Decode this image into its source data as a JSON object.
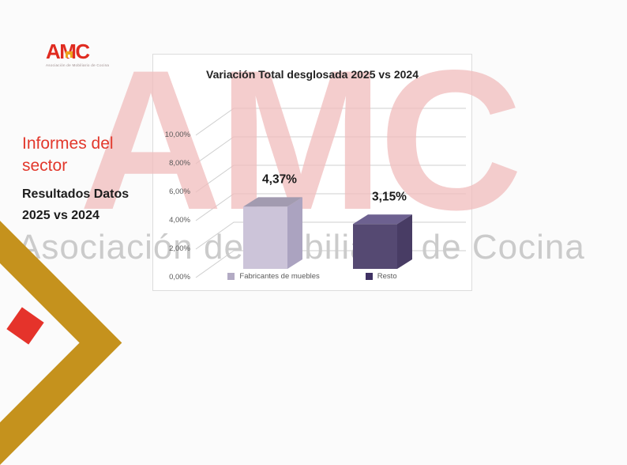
{
  "logo": {
    "text": "AMC",
    "subtext": "Asociación de Mobiliario de Cocina"
  },
  "left_panel": {
    "title": "Informes del sector",
    "subtitle_line1": "Resultados Datos",
    "subtitle_line2": "2025 vs 2024"
  },
  "watermark": {
    "text": "AMC",
    "subtitle": "Asociación de Mobiliario de Cocina"
  },
  "chart_data": {
    "type": "bar",
    "style": "3d-column",
    "title": "Variación Total desglosada 2025 vs 2024",
    "categories": [
      "Fabricantes de muebles",
      "Resto"
    ],
    "values": [
      4.37,
      3.15
    ],
    "value_labels": [
      "4,37%",
      "3,15%"
    ],
    "y_ticks": [
      "0,00%",
      "2,00%",
      "4,00%",
      "6,00%",
      "8,00%",
      "10,00%"
    ],
    "ylim": [
      0,
      10
    ],
    "xlabel": "",
    "ylabel": "",
    "grid": true,
    "legend_position": "bottom",
    "series_colors": [
      {
        "front": "#ccc4d9",
        "top": "#a29bb0",
        "side": "#aba3c0",
        "legend": "#b3abc4"
      },
      {
        "front": "#554972",
        "top": "#6d6190",
        "side": "#483c64",
        "legend": "#3f3163"
      }
    ]
  },
  "colors": {
    "accent_red": "#e2382c",
    "logo_red": "#e02b20",
    "watermark_pink": "#f5caca",
    "watermark_tan": "#eadfc2",
    "watermark_gray": "#cbcbcb",
    "gold": "#c5921d",
    "diamond_red": "#e5332b",
    "grid_line": "#cfcfcf",
    "tick_text": "#595959",
    "value_label_text": "#1a1a1a",
    "legend_text": "#5a5a5a",
    "title_text": "#222222"
  }
}
